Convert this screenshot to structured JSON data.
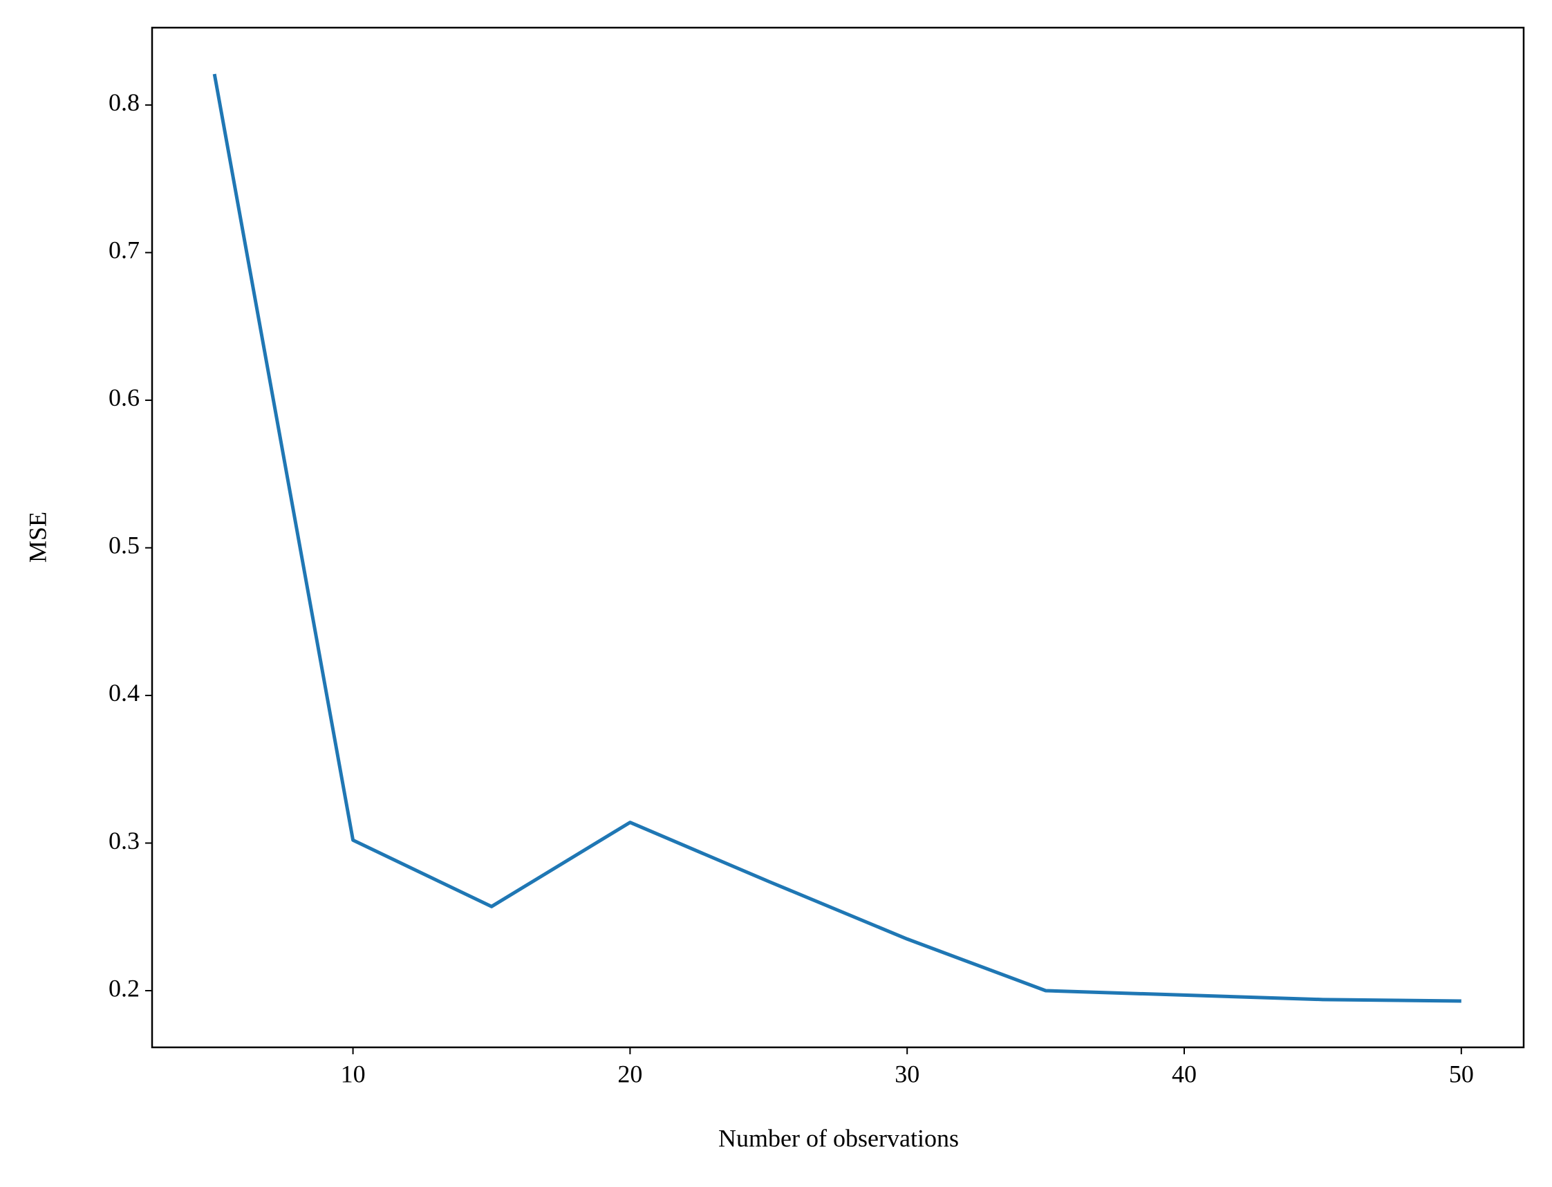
{
  "chart_data": {
    "type": "line",
    "xlabel": "Number of observations",
    "ylabel": "MSE",
    "x": [
      5,
      10,
      15,
      20,
      25,
      30,
      35,
      40,
      45,
      50
    ],
    "series": [
      {
        "color": "#1f77b4",
        "values": [
          0.821,
          0.302,
          0.257,
          0.314,
          0.274,
          0.235,
          0.2,
          0.197,
          0.194,
          0.193
        ]
      }
    ],
    "xlim": [
      2.75,
      52.25
    ],
    "ylim": [
      0.1616,
      0.8524
    ],
    "xticks": [
      10,
      20,
      30,
      40,
      50
    ],
    "yticks": [
      0.2,
      0.3,
      0.4,
      0.5,
      0.6,
      0.7,
      0.8
    ]
  }
}
